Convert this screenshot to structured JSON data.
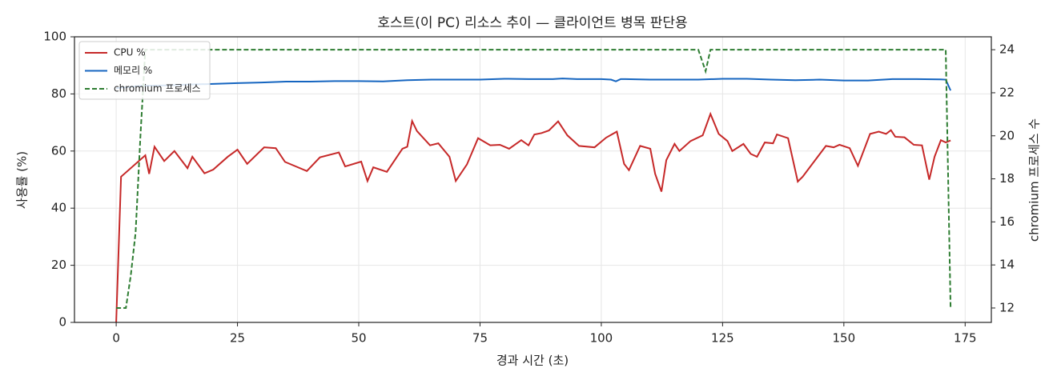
{
  "chart_data": {
    "type": "line",
    "title": "호스트(이 PC) 리소스 추이 — 클라이언트 병목 판단용",
    "x_label": "경과 시간 (초)",
    "y_label": "사용률 (%)",
    "y2_label": "chromium 프로세스 수",
    "xlim": [
      -8.6,
      180.4
    ],
    "xticks": [
      0,
      25,
      50,
      75,
      100,
      125,
      150,
      175
    ],
    "ylim": [
      0,
      100
    ],
    "yticks": [
      0,
      20,
      40,
      60,
      80,
      100
    ],
    "y2lim": [
      11.33,
      24.6
    ],
    "y2ticks": [
      12,
      14,
      16,
      18,
      20,
      22,
      24
    ],
    "grid": true,
    "legend": "upper-left",
    "series": [
      {
        "name": "CPU %",
        "color": "#c62828",
        "linestyle": "solid",
        "x": [
          0,
          1,
          6,
          6.8,
          7.9,
          9.9,
          12,
          14.7,
          15.7,
          18.2,
          20,
          23,
          25,
          27,
          30.5,
          32.9,
          34.8,
          39.3,
          42,
          45.9,
          47.2,
          50.5,
          51.8,
          53,
          55.8,
          59,
          60,
          61,
          62,
          64.7,
          66.4,
          68.7,
          70,
          72.3,
          74.6,
          77.1,
          79.1,
          81,
          83.5,
          85,
          86.2,
          87.7,
          89.2,
          91.1,
          93,
          95.4,
          98.6,
          101,
          103.2,
          104.7,
          105.7,
          108,
          110.1,
          111.1,
          112.4,
          113.4,
          115.1,
          116.1,
          118.4,
          120.9,
          122.5,
          124.2,
          126,
          127,
          129.3,
          130.8,
          132.1,
          133.7,
          135.4,
          136.2,
          138.5,
          140.5,
          141.5,
          143.5,
          146.3,
          147.9,
          149.1,
          151.2,
          152.9,
          155.4,
          157.2,
          158.7,
          159.7,
          160.6,
          162.5,
          164.4,
          166.1,
          167.6,
          168.7,
          170,
          171,
          172
        ],
        "values": [
          0,
          51,
          58.5,
          52,
          61.5,
          56.5,
          60,
          54,
          58,
          52.2,
          53.5,
          58,
          60.5,
          55.5,
          61.3,
          61,
          56.2,
          53,
          57.8,
          59.5,
          54.6,
          56.3,
          49.5,
          54.3,
          52.7,
          60.8,
          61.5,
          70.5,
          67,
          62,
          62.7,
          58,
          49.5,
          55.3,
          64.5,
          62,
          62.2,
          60.8,
          63.8,
          62,
          65.8,
          66.3,
          67.2,
          70.4,
          65.5,
          61.8,
          61.3,
          64.7,
          66.8,
          55.5,
          53.3,
          61.8,
          60.8,
          52,
          45.8,
          56.8,
          62.5,
          60,
          63.5,
          65.5,
          73,
          66,
          63.5,
          60,
          62.5,
          59,
          58,
          63,
          62.7,
          65.8,
          64.5,
          49.3,
          51,
          55.5,
          61.8,
          61.3,
          62.2,
          61,
          54.8,
          66,
          66.8,
          66,
          67.3,
          65,
          64.8,
          62.2,
          62,
          50,
          58,
          63.8,
          63,
          63.7
        ]
      },
      {
        "name": "메모리 %",
        "color": "#1565c0",
        "linestyle": "solid",
        "x": [
          0,
          5,
          10,
          15,
          20,
          25,
          30,
          35,
          40,
          45,
          50,
          55,
          60,
          65,
          70,
          75,
          80,
          85,
          90,
          92,
          95,
          100,
          102,
          103,
          104,
          105,
          110,
          115,
          120,
          125,
          130,
          135,
          140,
          145,
          150,
          155,
          160,
          165,
          170,
          171,
          172
        ],
        "values": [
          82,
          82.8,
          83,
          83.3,
          83.5,
          83.8,
          84,
          84.3,
          84.3,
          84.5,
          84.5,
          84.4,
          84.8,
          85,
          85,
          85,
          85.3,
          85.2,
          85.2,
          85.4,
          85.2,
          85.2,
          85,
          84.4,
          85.2,
          85.2,
          85,
          85,
          85,
          85.3,
          85.3,
          85,
          84.8,
          85,
          84.7,
          84.7,
          85.2,
          85.2,
          85.1,
          85,
          81.2
        ]
      },
      {
        "name": "chromium 프로세스",
        "color": "#2e7d32",
        "linestyle": "dashed",
        "axis": "y2",
        "x": [
          0,
          2,
          3,
          4,
          5,
          6,
          120,
          121.5,
          122.5,
          171,
          172
        ],
        "values": [
          12,
          12,
          13.5,
          15.5,
          20,
          24,
          24,
          23,
          24,
          24,
          12
        ]
      }
    ]
  }
}
